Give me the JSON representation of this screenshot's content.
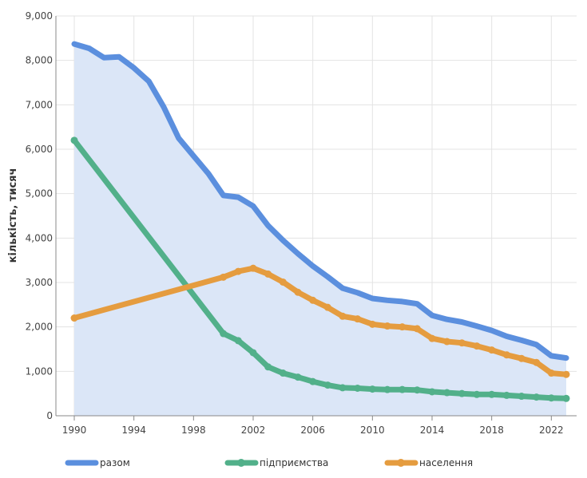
{
  "chart_data": {
    "type": "line",
    "title": "",
    "xlabel": "",
    "ylabel": "кількість, тисяч",
    "ylim": [
      0,
      9000
    ],
    "yticks": [
      "0",
      "1,000",
      "2,000",
      "3,000",
      "4,000",
      "5,000",
      "6,000",
      "7,000",
      "8,000",
      "9,000"
    ],
    "ytick_values": [
      0,
      1000,
      2000,
      3000,
      4000,
      5000,
      6000,
      7000,
      8000,
      9000
    ],
    "xticks": [
      "1990",
      "1994",
      "1998",
      "2002",
      "2006",
      "2010",
      "2014",
      "2018",
      "2022"
    ],
    "xtick_values": [
      1990,
      1994,
      1998,
      2002,
      2006,
      2010,
      2014,
      2018,
      2022
    ],
    "grid": true,
    "legend_position": "bottom",
    "x": [
      1990,
      1991,
      1992,
      1993,
      1994,
      1995,
      1996,
      1997,
      1998,
      1999,
      2000,
      2001,
      2002,
      2003,
      2004,
      2005,
      2006,
      2007,
      2008,
      2009,
      2010,
      2011,
      2012,
      2013,
      2014,
      2015,
      2016,
      2017,
      2018,
      2019,
      2020,
      2021,
      2022,
      2023
    ],
    "series": [
      {
        "name": "разом",
        "color": "#5b8fde",
        "area": true,
        "values": [
          8370,
          8270,
          8060,
          8080,
          7830,
          7530,
          6950,
          6250,
          5850,
          5450,
          4960,
          4920,
          4720,
          4280,
          3950,
          3650,
          3370,
          3130,
          2870,
          2770,
          2640,
          2600,
          2570,
          2520,
          2260,
          2170,
          2110,
          2020,
          1920,
          1790,
          1700,
          1600,
          1350,
          1300
        ]
      },
      {
        "name": "підприємства",
        "color": "#52b08a",
        "area": false,
        "values": [
          6200,
          null,
          null,
          null,
          null,
          null,
          null,
          null,
          null,
          null,
          1850,
          1690,
          1420,
          1100,
          960,
          870,
          770,
          690,
          630,
          620,
          600,
          590,
          590,
          580,
          540,
          520,
          500,
          480,
          480,
          460,
          440,
          420,
          400,
          390
        ]
      },
      {
        "name": "населення",
        "color": "#e59c3f",
        "area": false,
        "values": [
          2200,
          null,
          null,
          null,
          null,
          null,
          null,
          null,
          null,
          null,
          3120,
          3250,
          3320,
          3190,
          3010,
          2780,
          2600,
          2440,
          2240,
          2180,
          2060,
          2020,
          2000,
          1960,
          1740,
          1670,
          1640,
          1570,
          1480,
          1370,
          1290,
          1200,
          960,
          930
        ]
      }
    ]
  }
}
